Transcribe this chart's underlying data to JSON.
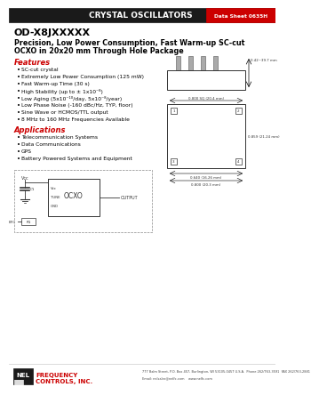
{
  "header_text": "CRYSTAL OSCILLATORS",
  "datasheet_label": "Data Sheet 0635H",
  "title_line1": "OD-X8JXXXXX",
  "title_line2": "Precision, Low Power Consumption, Fast Warm-up SC-cut",
  "title_line3": "OCXO in 20x20 mm Through Hole Package",
  "features_title": "Features",
  "features": [
    "SC-cut crystal",
    "Extremely Low Power Consumption (125 mW)",
    "Fast Warm-up Time (30 s)",
    "High Stability (up to ± 1x10⁻⁸)",
    "Low Aging (5x10⁻¹⁰/day, 5x10⁻⁸/year)",
    "Low Phase Noise (-160 dBc/Hz, TYP, floor)",
    "Sine Wave or HCMOS/TTL output",
    "8 MHz to 160 MHz Frequencies Available"
  ],
  "applications_title": "Applications",
  "applications": [
    "Telecommunication Systems",
    "Data Communications",
    "GPS",
    "Battery Powered Systems and Equipment"
  ],
  "company_name_line1": "FREQUENCY",
  "company_name_line2": "CONTROLS, INC.",
  "footer_address": "777 Balm Street, P.O. Box 457, Burlington, WI 53105-0457 U.S.A.  Phone 262/763-3591  FAX 262/763-2881",
  "footer_email": "Email: nelsales@nelfc.com    www.nelfc.com",
  "bg_color": "#ffffff",
  "header_bg": "#1a1a1a",
  "header_text_color": "#ffffff",
  "datasheet_bg": "#cc0000",
  "datasheet_text_color": "#ffffff",
  "title_color": "#000000",
  "features_title_color": "#cc0000",
  "applications_title_color": "#cc0000",
  "body_text_color": "#000000",
  "nel_logo_bg": "#1a1a1a",
  "nel_logo_text_color": "#ffffff",
  "company_text_color": "#cc0000"
}
